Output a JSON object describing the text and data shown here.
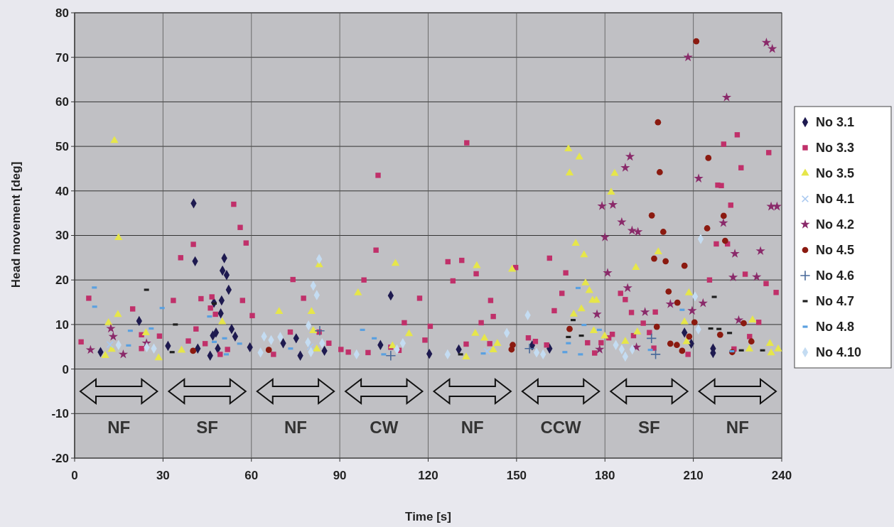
{
  "chart_data": {
    "type": "scatter",
    "xlabel": "Time [s]",
    "ylabel": "Head movement [deg]",
    "xlim": [
      0,
      240
    ],
    "ylim": [
      -20,
      80
    ],
    "xticks": [
      0,
      30,
      60,
      90,
      120,
      150,
      180,
      210,
      240
    ],
    "yticks": [
      -20,
      -10,
      0,
      10,
      20,
      30,
      40,
      50,
      60,
      70,
      80
    ],
    "grid": true,
    "legend": "right",
    "annotations": [
      "NF",
      "SF",
      "NF",
      "CW",
      "NF",
      "CCW",
      "SF",
      "NF"
    ],
    "series": [
      {
        "name": "No 3.1",
        "color": "#1e1a50",
        "marker": "diamond",
        "x": [
          40.4,
          40.9,
          50.8,
          50.2,
          51.6,
          52.3,
          49.9,
          47.3,
          49.6,
          21.9,
          53.3,
          54.5,
          46.9,
          48,
          31.7,
          8.8,
          41.8,
          46,
          48.6,
          59.5,
          70.8,
          75.2,
          76.6,
          84.8,
          107.3,
          103.8,
          120.4,
          130.4,
          161.2,
          155.3,
          207,
          209.3,
          216.7,
          216.7
        ],
        "values": [
          37.2,
          24.2,
          24.9,
          22.1,
          21.1,
          17.8,
          15.4,
          14.9,
          12.5,
          10.8,
          9,
          7.3,
          7.5,
          8.2,
          5.2,
          3.8,
          4.6,
          3,
          4.6,
          4.9,
          5.8,
          6.9,
          3,
          4.1,
          16.5,
          5.4,
          3.4,
          4.4,
          4.6,
          5.3,
          8.2,
          5.7,
          4.6,
          3.6
        ]
      },
      {
        "name": "No 3.3",
        "color": "#c0306a",
        "marker": "square",
        "x": [
          4.8,
          2.2,
          19.7,
          22.7,
          22.7,
          28.8,
          33.5,
          36,
          40.3,
          42.9,
          46.6,
          46.1,
          47.8,
          41.2,
          38.6,
          44.3,
          51.9,
          49.4,
          54,
          56.2,
          58.2,
          57,
          60.3,
          74.1,
          77.7,
          73.2,
          83,
          86.3,
          67.5,
          90.4,
          92.9,
          99.6,
          103,
          102.3,
          98.2,
          117.1,
          111.9,
          118.9,
          120.7,
          107.3,
          110.1,
          133.1,
          126.7,
          131.4,
          136.3,
          128.4,
          141.2,
          142.1,
          138,
          132.9,
          140.9,
          149.7,
          154,
          156.4,
          160.2,
          161.2,
          166.7,
          165.4,
          162.8,
          174.1,
          176.5,
          178.7,
          185.3,
          186.9,
          189,
          197.1,
          193,
          195.1,
          196.6,
          189.7,
          182.5,
          181.3,
          208.2,
          215.5,
          217.8,
          221.6,
          222.7,
          218.3,
          219.5,
          226.2,
          220.3,
          224.9,
          235.6,
          227.6,
          234.7,
          238.1,
          232.2,
          229.1,
          223.8
        ],
        "values": [
          15.9,
          6.1,
          13.5,
          7.7,
          4.6,
          7.4,
          15.4,
          25,
          28,
          15.8,
          16.2,
          13.7,
          12.3,
          9,
          6.3,
          5.7,
          4.4,
          3.3,
          37,
          31.8,
          28.3,
          15.4,
          12,
          20.1,
          15.9,
          8.3,
          8.3,
          5.8,
          3.3,
          4.4,
          3.8,
          3.7,
          43.5,
          26.7,
          20,
          15.9,
          10.4,
          6.5,
          9.6,
          4.9,
          4.2,
          50.8,
          24.1,
          24.4,
          21.4,
          19.8,
          15.4,
          11.8,
          10.4,
          5.6,
          5.7,
          22.8,
          7,
          6.2,
          5.4,
          24.9,
          21.6,
          17,
          13.1,
          5.9,
          3.6,
          5.9,
          17,
          15.6,
          12.7,
          12.8,
          10.3,
          8.2,
          4.7,
          7.5,
          7.8,
          7,
          3.3,
          20,
          28.1,
          28.1,
          36.8,
          41.3,
          41.2,
          45.2,
          50.5,
          52.6,
          48.6,
          21.3,
          19.2,
          17.2,
          10.5,
          7.3,
          4.5
        ]
      },
      {
        "name": "No 3.5",
        "color": "#e6e64a",
        "marker": "triangle",
        "x": [
          13.5,
          14.9,
          14.7,
          11.5,
          24.2,
          12.6,
          10.4,
          28.5,
          36.3,
          50.1,
          83,
          69.4,
          80.4,
          81,
          82.2,
          96.2,
          108.9,
          113.5,
          107.9,
          136.5,
          148.5,
          136,
          139.1,
          143.5,
          142.1,
          132.9,
          167.6,
          171.3,
          168,
          170.1,
          172.9,
          173.4,
          174.7,
          175.8,
          177.1,
          172,
          169.4,
          176.2,
          183.3,
          182.1,
          198.1,
          190.5,
          208.5,
          207,
          179.9,
          186.9,
          191,
          207.7,
          230.1,
          229,
          236,
          236.4,
          238.8
        ],
        "values": [
          51.3,
          29.5,
          12.2,
          10.4,
          8.1,
          4.4,
          3,
          2.5,
          4.2,
          10.6,
          23.4,
          12.9,
          12.9,
          8.6,
          4.5,
          17.1,
          23.7,
          7.9,
          5.2,
          23.2,
          22.4,
          8,
          6.9,
          5.7,
          4.3,
          2.7,
          49.4,
          47.6,
          44,
          28.2,
          25.6,
          19.3,
          17.6,
          15.4,
          15.4,
          13.5,
          12.3,
          8.6,
          43.9,
          39.7,
          26.3,
          22.8,
          17.1,
          10.6,
          7.4,
          6.2,
          8.3,
          6.1,
          11,
          4.5,
          5.7,
          3.6,
          4.5
        ]
      },
      {
        "name": "No 4.1",
        "color": "#a8c8f0",
        "marker": "x",
        "x": [
          12,
          80,
          140
        ],
        "values": [
          5.5,
          5,
          4
        ]
      },
      {
        "name": "No 4.2",
        "color": "#8a2a6a",
        "marker": "star",
        "x": [
          12.3,
          13.1,
          5.4,
          16.5,
          24.4,
          188.5,
          186.9,
          211.8,
          179,
          182.7,
          185.7,
          189.2,
          191.2,
          180,
          220.2,
          224.1,
          232.8,
          180.9,
          223.5,
          231.5,
          187.7,
          202.2,
          213.3,
          209.6,
          193.6,
          225.4,
          236.4,
          238.4,
          190.7,
          208.2,
          234.8,
          236.8,
          221.3,
          177.3,
          178.2
        ],
        "values": [
          9.1,
          7.3,
          4.3,
          3.3,
          5.8,
          47.7,
          45.2,
          42.8,
          36.6,
          36.9,
          33,
          31.1,
          30.8,
          29.6,
          32.8,
          25.9,
          26.5,
          21.6,
          20.6,
          20.7,
          18.2,
          14.6,
          14.8,
          13.1,
          12.8,
          11,
          36.5,
          36.5,
          4.9,
          70,
          73.3,
          71.9,
          61,
          12.3,
          4.4
        ]
      },
      {
        "name": "No 4.5",
        "color": "#8b1a10",
        "marker": "circle",
        "x": [
          198,
          215.1,
          198.6,
          195.9,
          220.3,
          199.8,
          214.7,
          220.8,
          196.7,
          200.6,
          207,
          201.6,
          204.6,
          197.6,
          210.4,
          202.2,
          204.4,
          206.2,
          208.6,
          219.1,
          227.1,
          229.7,
          223.2,
          211,
          168,
          148.7,
          148.3,
          40.2,
          65.9
        ],
        "values": [
          55.4,
          47.4,
          44.2,
          34.5,
          34.4,
          30.8,
          31.6,
          28.8,
          24.8,
          24.2,
          23.2,
          17.4,
          14.9,
          9.5,
          10.5,
          5.7,
          5.4,
          4.1,
          7.3,
          7.7,
          10.3,
          6.2,
          3.8,
          73.6,
          9,
          5.4,
          4.4,
          4.1,
          4.3
        ]
      },
      {
        "name": "No 4.6",
        "color": "#4a6a9a",
        "marker": "cross",
        "x": [
          83.2,
          107.3,
          154.4,
          195.8,
          197.2
        ],
        "values": [
          8.6,
          3,
          4.6,
          6.9,
          3.3
        ]
      },
      {
        "name": "No 4.7",
        "color": "#202020",
        "x": [
          24.4,
          34.2,
          33.1,
          47.4,
          169.2,
          167.6,
          172,
          131,
          217.1,
          215.9,
          218.7,
          222.3,
          226.3,
          233.5
        ],
        "values": [
          17.8,
          10,
          3.8,
          14.7,
          11,
          7.2,
          7.5,
          3.3,
          16.2,
          9.1,
          9,
          8.1,
          4.2,
          4.2
        ]
      },
      {
        "name": "No 4.8",
        "color": "#5aa0e0",
        "x": [
          6.7,
          6.8,
          29.7,
          18.9,
          26,
          18.3,
          45.8,
          50.9,
          47.4,
          56,
          51.5,
          73.3,
          97.7,
          101.7,
          104.9,
          170.9,
          172.9,
          167.6,
          166.4,
          171.7,
          138.7,
          206.2,
          178.1,
          195.4,
          223.1
        ],
        "values": [
          18.3,
          14,
          13.7,
          8.6,
          9.1,
          5.3,
          11.8,
          6.9,
          6.1,
          5.7,
          3.3,
          4.6,
          8.8,
          6.9,
          3.3,
          18.2,
          9.9,
          5.8,
          3.8,
          3.3,
          3.5,
          13.3,
          8.8,
          4.3,
          4
        ]
      },
      {
        "name": "No 4.10",
        "color": "#c4dcf2",
        "marker": "diamond",
        "x": [
          14.9,
          24.5,
          26.9,
          83,
          81,
          82.2,
          79.4,
          64.3,
          66.7,
          69.8,
          79.2,
          84,
          80.2,
          63.1,
          95.7,
          111.4,
          109.4,
          153.8,
          146.7,
          126.6,
          156.8,
          159,
          212.5,
          210.6,
          211.7,
          183.7,
          185.7,
          189.3,
          186.9
        ],
        "values": [
          5.4,
          4.9,
          4.6,
          24.7,
          18.7,
          16.6,
          9.8,
          7.3,
          6.5,
          7.2,
          6,
          5.8,
          3.8,
          3.7,
          3.3,
          5.8,
          4.4,
          12.1,
          8.1,
          3.3,
          3.7,
          3.3,
          29.2,
          16.3,
          8.9,
          5.4,
          4.4,
          4.4,
          2.8
        ]
      }
    ]
  }
}
